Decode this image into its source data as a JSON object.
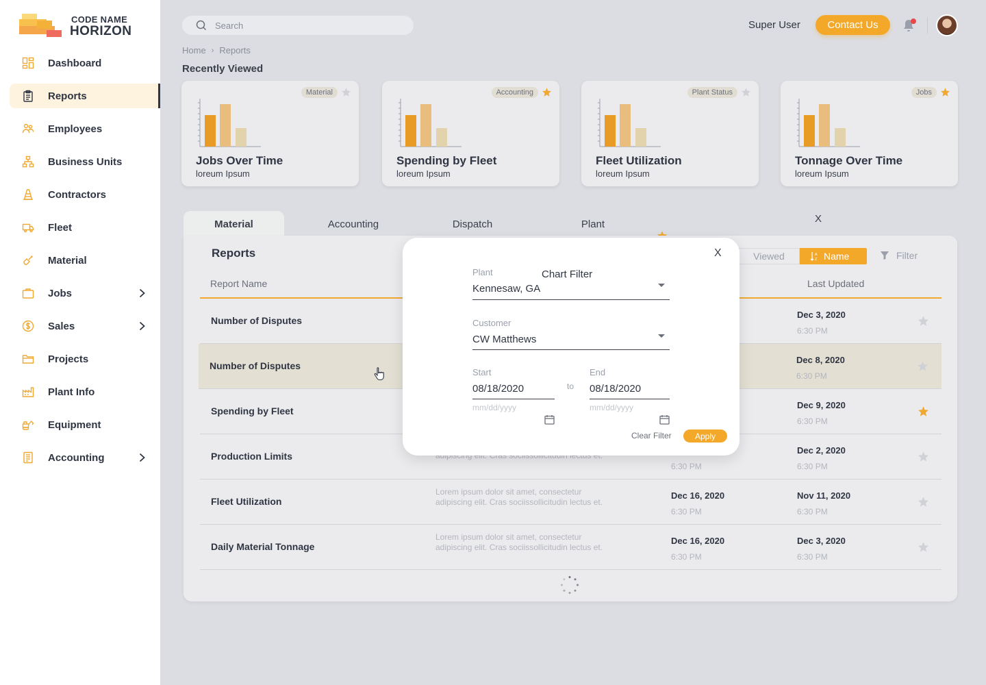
{
  "brand": {
    "line1": "CODE NAME",
    "line2": "HORIZON"
  },
  "sidebar": {
    "items": [
      {
        "label": "Dashboard",
        "icon": "dashboard-icon"
      },
      {
        "label": "Reports",
        "icon": "clipboard-icon",
        "active": true
      },
      {
        "label": "Employees",
        "icon": "people-icon"
      },
      {
        "label": "Business Units",
        "icon": "org-chart-icon"
      },
      {
        "label": "Contractors",
        "icon": "cone-icon"
      },
      {
        "label": "Fleet",
        "icon": "truck-icon"
      },
      {
        "label": "Material",
        "icon": "shovel-icon"
      },
      {
        "label": "Jobs",
        "icon": "briefcase-icon",
        "expandable": true
      },
      {
        "label": "Sales",
        "icon": "dollar-icon",
        "expandable": true
      },
      {
        "label": "Projects",
        "icon": "folder-icon"
      },
      {
        "label": "Plant Info",
        "icon": "factory-icon"
      },
      {
        "label": "Equipment",
        "icon": "excavator-icon"
      },
      {
        "label": "Accounting",
        "icon": "ledger-icon",
        "expandable": true
      }
    ]
  },
  "header": {
    "search_placeholder": "Search",
    "user_name": "Super User",
    "contact_label": "Contact Us"
  },
  "breadcrumb": {
    "home": "Home",
    "current": "Reports"
  },
  "recently_viewed": {
    "title": "Recently Viewed",
    "cards": [
      {
        "tag": "Material",
        "title": "Jobs Over Time",
        "subtitle": "loreum Ipsum",
        "starred": false
      },
      {
        "tag": "Accounting",
        "title": "Spending by Fleet",
        "subtitle": "loreum Ipsum",
        "starred": true
      },
      {
        "tag": "Plant Status",
        "title": "Fleet Utilization",
        "subtitle": "loreum Ipsum",
        "starred": false
      },
      {
        "tag": "Jobs",
        "title": "Tonnage Over Time",
        "subtitle": "loreum Ipsum",
        "starred": true
      }
    ]
  },
  "tabs": [
    "Material",
    "Accounting",
    "Dispatch",
    "Plant"
  ],
  "tab_close": "X",
  "reports": {
    "title": "Reports",
    "sort": {
      "viewed": "Viewed",
      "name": "Name"
    },
    "filter_label": "Filter",
    "columns": {
      "name": "Report Name",
      "updated": "Last Updated"
    },
    "rows": [
      {
        "name": "Number of Disputes",
        "desc": "",
        "date1": "",
        "time1": "",
        "date2": "Dec 3, 2020",
        "time2": "6:30 PM",
        "starred": false
      },
      {
        "name": "Number of Disputes",
        "desc": "",
        "date1": "",
        "time1": "",
        "date2": "Dec 8, 2020",
        "time2": "6:30 PM",
        "starred": false,
        "highlight": true
      },
      {
        "name": "Spending by Fleet",
        "desc": "",
        "date1": "",
        "time1": "",
        "date2": "Dec 9, 2020",
        "time2": "6:30 PM",
        "starred": true
      },
      {
        "name": "Production Limits",
        "desc": "adipiscing elit. Cras sociissollicitudin lectus et.",
        "date1": "",
        "time1": "6:30 PM",
        "date2": "Dec 2, 2020",
        "time2": "6:30 PM",
        "starred": false
      },
      {
        "name": "Fleet Utilization",
        "desc": "Lorem ipsum dolor sit amet, consectetur adipiscing elit. Cras sociissollicitudin lectus et.",
        "date1": "Dec 16, 2020",
        "time1": "6:30 PM",
        "date2": "Nov 11, 2020",
        "time2": "6:30 PM",
        "starred": false
      },
      {
        "name": "Daily Material Tonnage",
        "desc": "Lorem ipsum dolor sit amet, consectetur adipiscing elit. Cras sociissollicitudin lectus et.",
        "date1": "Dec 16, 2020",
        "time1": "6:30 PM",
        "date2": "Dec 3, 2020",
        "time2": "6:30 PM",
        "starred": false
      }
    ]
  },
  "chart_filter": {
    "title": "Chart Filter",
    "close": "X",
    "plant_label": "Plant",
    "plant_value": "Kennesaw, GA",
    "customer_label": "Customer",
    "customer_value": "CW Matthews",
    "start_label": "Start",
    "start_value": "08/18/2020",
    "start_hint": "mm/dd/yyyy",
    "to_label": "to",
    "end_label": "End",
    "end_value": "08/18/2020",
    "end_hint": "mm/dd/yyyy",
    "clear_label": "Clear Filter",
    "apply_label": "Apply"
  },
  "colors": {
    "accent": "#f4a82a",
    "text": "#2f3542",
    "highlight_row": "#e3dfd3"
  }
}
